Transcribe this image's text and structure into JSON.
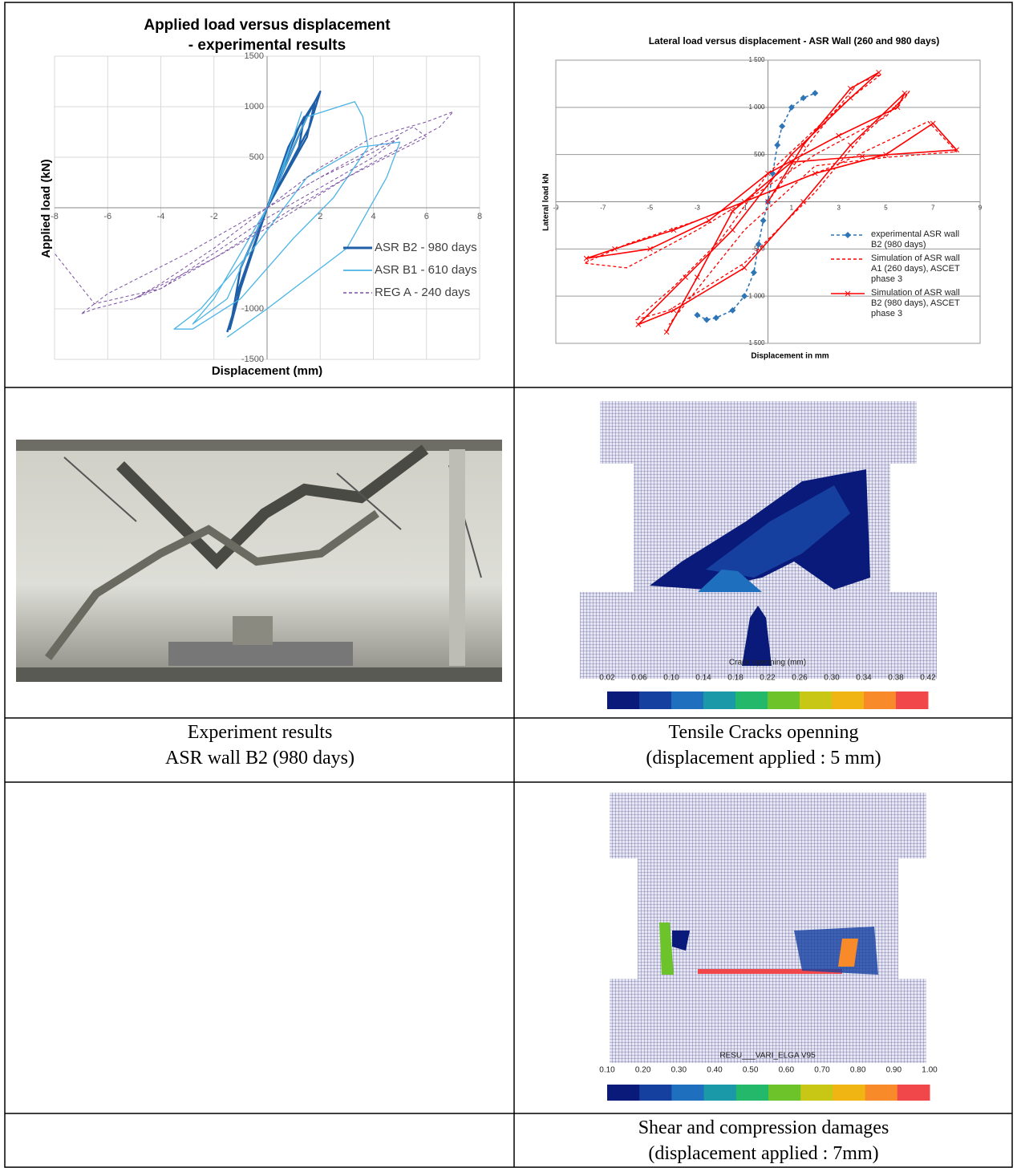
{
  "chart_data": [
    {
      "type": "line",
      "title": "Applied load versus displacement",
      "subtitle": "- experimental results",
      "x_label": "Displacement (mm)",
      "y_label": "Applied load (kN)",
      "xlim": [
        -8,
        8
      ],
      "ylim": [
        -1500,
        1500
      ],
      "xticks": [
        -8,
        -6,
        -4,
        -2,
        2,
        4,
        6,
        8
      ],
      "yticks": [
        1500,
        1000,
        500,
        -1000,
        -1500
      ],
      "grid": true,
      "legend": "lower right",
      "series": [
        {
          "name": "ASR B2 - 980 days",
          "color": "#1f5fa8",
          "dash": false,
          "x": [
            0,
            0.8,
            1.4,
            1.2,
            0,
            -0.8,
            -1.2,
            -1,
            0,
            1.2,
            1.8,
            1.5,
            0,
            -1.2,
            -1.4,
            -1,
            0,
            1.5,
            2,
            1.6,
            0,
            -1,
            -1.5
          ],
          "values": [
            0,
            600,
            900,
            600,
            0,
            -600,
            -900,
            -600,
            0,
            800,
            1050,
            700,
            0,
            -900,
            -1200,
            -800,
            0,
            900,
            1150,
            800,
            0,
            -800,
            -1230
          ]
        },
        {
          "name": "ASR B1 - 610 days",
          "color": "#4bb4e6",
          "dash": false,
          "x": [
            0,
            1,
            1.3,
            0.5,
            -0.5,
            -1.5,
            -2.8,
            -2,
            0,
            1.5,
            3.3,
            3.6,
            3.8,
            2.5,
            1,
            -1,
            -2.8,
            -3.5,
            -2.5,
            -0.5,
            1.5,
            3.5,
            5,
            4.5,
            3,
            0,
            -1.5
          ],
          "values": [
            0,
            700,
            950,
            300,
            -300,
            -900,
            -1150,
            -900,
            0,
            900,
            1050,
            900,
            600,
            100,
            -300,
            -900,
            -1200,
            -1200,
            -1000,
            -400,
            300,
            600,
            650,
            300,
            -400,
            -1000,
            -1280
          ]
        },
        {
          "name": "REG A - 240 days",
          "color": "#7a4fa3",
          "dash": true,
          "x": [
            0,
            2,
            4,
            5,
            4,
            2,
            0,
            -2,
            -4,
            -5,
            -4,
            -2,
            0,
            2,
            4,
            6,
            7,
            6.5,
            4,
            1,
            -2,
            -5,
            -6.5,
            -7,
            -6,
            -3,
            0,
            3,
            5.5,
            6,
            3,
            0,
            -4,
            -6.5,
            -8
          ],
          "values": [
            0,
            300,
            550,
            700,
            500,
            200,
            -100,
            -450,
            -800,
            -900,
            -750,
            -400,
            0,
            400,
            700,
            850,
            950,
            800,
            450,
            0,
            -500,
            -900,
            -1000,
            -1050,
            -850,
            -450,
            0,
            450,
            800,
            700,
            300,
            -200,
            -800,
            -950,
            -450
          ]
        }
      ]
    },
    {
      "type": "line",
      "title": "Lateral load versus displacement - ASR Wall (260 and 980 days)",
      "x_label": "Displacement in  mm",
      "y_label": "Lateral load kN",
      "xlim": [
        -9,
        9
      ],
      "ylim": [
        -1500,
        1500
      ],
      "xticks": [
        -9,
        -7,
        -5,
        -3,
        -1,
        1,
        3,
        5,
        7,
        9
      ],
      "yticks": [
        {
          "value": 1500,
          "label": "1 500"
        },
        {
          "value": 1000,
          "label": "1 000"
        },
        500,
        -500,
        {
          "value": -1000,
          "label": "-1 000"
        },
        {
          "value": -1500,
          "label": "-1 500"
        }
      ],
      "grid": "y",
      "legend": "lower right",
      "series": [
        {
          "name": "experimental ASR wall B2 (980 days)",
          "color": "#2e75b6",
          "dash": true,
          "marker": "diamond",
          "x": [
            -3,
            -2.6,
            -2.2,
            -1.5,
            -1,
            -0.6,
            -0.4,
            -0.2,
            0,
            0.2,
            0.4,
            0.6,
            1,
            1.5,
            2
          ],
          "values": [
            -1200,
            -1250,
            -1230,
            -1150,
            -1000,
            -750,
            -450,
            -200,
            0,
            300,
            600,
            800,
            1000,
            1100,
            1150
          ]
        },
        {
          "name": "Simulation of ASR wall A1 (260 days), ASCET phase 3",
          "color": "#ff0000",
          "dash": true,
          "x": [
            0,
            2,
            3.8,
            4.8,
            3,
            0,
            -2,
            -4,
            -5.6,
            -4.2,
            -1,
            2,
            4,
            5.8,
            6,
            5,
            2,
            -1,
            -3,
            -6,
            -7.8,
            -6,
            -3,
            0,
            3,
            6.8,
            8,
            5,
            2,
            -1,
            -4.2
          ],
          "values": [
            0,
            700,
            1250,
            1350,
            1000,
            300,
            -400,
            -900,
            -1250,
            -1150,
            -650,
            100,
            700,
            1100,
            1170,
            900,
            500,
            0,
            -300,
            -700,
            -650,
            -450,
            -200,
            100,
            400,
            850,
            530,
            470,
            380,
            -300,
            -1300
          ]
        },
        {
          "name": "Simulation of ASR wall B2 (980 days), ASCET phase 3",
          "color": "#ff0000",
          "dash": false,
          "marker": "x",
          "x": [
            0,
            1.5,
            3.5,
            4.7,
            3.5,
            1,
            -1.5,
            -3.5,
            -5.5,
            -4,
            -1,
            1.5,
            3.5,
            5.8,
            5.5,
            3,
            0,
            -2.5,
            -5,
            -7.7,
            -6.5,
            -4,
            -1,
            2,
            5,
            7,
            8,
            4,
            1,
            -1.5,
            -3,
            -4.3
          ],
          "values": [
            0,
            600,
            1200,
            1370,
            1100,
            500,
            -300,
            -800,
            -1300,
            -1150,
            -700,
            0,
            600,
            1150,
            1000,
            700,
            300,
            -200,
            -500,
            -600,
            -500,
            -300,
            0,
            300,
            500,
            830,
            550,
            480,
            420,
            -100,
            -800,
            -1380
          ]
        }
      ]
    }
  ],
  "crack_map": {
    "colorbar_title": "Crack openning (mm)",
    "colorbar_labels": [
      "0.02",
      "0.06",
      "0.10",
      "0.14",
      "0.18",
      "0.22",
      "0.26",
      "0.30",
      "0.34",
      "0.38",
      "0.42"
    ]
  },
  "damage_map": {
    "colorbar_title": "RESU___VARI_ELGA V95",
    "colorbar_labels": [
      "0.10",
      "0.20",
      "0.30",
      "0.40",
      "0.50",
      "0.60",
      "0.70",
      "0.80",
      "0.90",
      "1.00"
    ]
  },
  "captions": {
    "experiment": [
      "Experiment results",
      "ASR wall B2 (980 days)"
    ],
    "cracks": [
      "Tensile Cracks openning",
      "(displacement applied : 5 mm)"
    ],
    "damage": [
      "Shear and compression damages",
      "(displacement applied : 7mm)"
    ]
  }
}
